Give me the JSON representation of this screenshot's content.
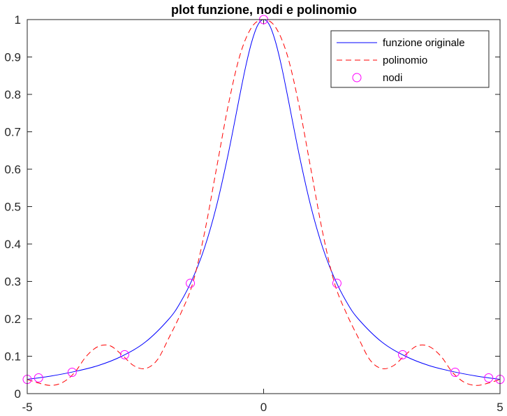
{
  "chart_data": {
    "type": "line",
    "title": "plot funzione, nodi e polinomio",
    "xlabel": "",
    "ylabel": "",
    "xlim": [
      -5,
      5
    ],
    "ylim": [
      0,
      1
    ],
    "x_ticks": [
      -5,
      0,
      5
    ],
    "y_ticks": [
      0,
      0.1,
      0.2,
      0.3,
      0.4,
      0.5,
      0.6,
      0.7,
      0.8,
      0.9,
      1
    ],
    "grid": false,
    "legend_position": "top-right",
    "series": [
      {
        "name": "funzione originale",
        "style": "solid",
        "color": "#0000ff",
        "x": [
          -5,
          -4.5,
          -4,
          -3.5,
          -3,
          -2.5,
          -2,
          -1.75,
          -1.5,
          -1.25,
          -1,
          -0.75,
          -0.5,
          -0.375,
          -0.25,
          -0.125,
          0,
          0.125,
          0.25,
          0.375,
          0.5,
          0.75,
          1,
          1.25,
          1.5,
          1.75,
          2,
          2.5,
          3,
          3.5,
          4,
          4.5,
          5
        ],
        "y": [
          0.038,
          0.047,
          0.059,
          0.075,
          0.1,
          0.138,
          0.2,
          0.246,
          0.308,
          0.39,
          0.5,
          0.64,
          0.8,
          0.877,
          0.941,
          0.985,
          1,
          0.985,
          0.941,
          0.877,
          0.8,
          0.64,
          0.5,
          0.39,
          0.308,
          0.246,
          0.2,
          0.138,
          0.1,
          0.075,
          0.059,
          0.047,
          0.038
        ]
      },
      {
        "name": "polinomio",
        "style": "dashed",
        "color": "#ff0000",
        "x": [
          -5,
          -4.75,
          -4.5,
          -4.25,
          -4,
          -3.75,
          -3.5,
          -3.25,
          -3,
          -2.75,
          -2.5,
          -2.25,
          -2,
          -1.75,
          -1.5,
          -1.25,
          -1,
          -0.75,
          -0.5,
          -0.25,
          0,
          0.25,
          0.5,
          0.75,
          1,
          1.25,
          1.5,
          1.75,
          2,
          2.25,
          2.5,
          2.75,
          3,
          3.25,
          3.5,
          3.75,
          4,
          4.25,
          4.5,
          4.75,
          5
        ],
        "y": [
          0.038,
          0.028,
          0.022,
          0.03,
          0.056,
          0.1,
          0.126,
          0.128,
          0.104,
          0.075,
          0.067,
          0.09,
          0.15,
          0.215,
          0.295,
          0.43,
          0.6,
          0.77,
          0.905,
          0.98,
          1,
          0.98,
          0.905,
          0.77,
          0.6,
          0.43,
          0.295,
          0.215,
          0.15,
          0.09,
          0.067,
          0.075,
          0.104,
          0.128,
          0.126,
          0.1,
          0.056,
          0.03,
          0.022,
          0.028,
          0.038
        ]
      },
      {
        "name": "nodi",
        "style": "markers",
        "color": "#ff00ff",
        "x": [
          -5,
          -4.76,
          -4.05,
          -2.94,
          -1.55,
          0,
          1.55,
          2.94,
          4.05,
          4.76,
          5
        ],
        "y": [
          0.038,
          0.042,
          0.057,
          0.104,
          0.295,
          1,
          0.295,
          0.104,
          0.057,
          0.042,
          0.038
        ]
      }
    ]
  }
}
